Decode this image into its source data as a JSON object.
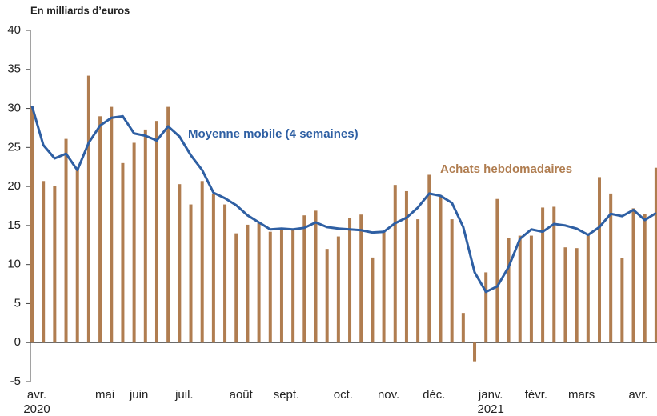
{
  "chart_data": {
    "type": "bar+line",
    "y_axis_label": "En milliards d’euros",
    "categories": [
      "avr. 2020",
      null,
      null,
      null,
      null,
      null,
      "mai",
      null,
      null,
      "juin",
      null,
      null,
      null,
      "juil.",
      null,
      null,
      null,
      null,
      "août",
      null,
      null,
      null,
      "sept.",
      null,
      null,
      null,
      null,
      "oct.",
      null,
      null,
      null,
      "nov.",
      null,
      null,
      null,
      "déc.",
      null,
      null,
      null,
      null,
      "janv. 2021",
      null,
      null,
      null,
      "févr.",
      null,
      null,
      null,
      "mars",
      null,
      null,
      null,
      null,
      "avr.",
      null,
      null
    ],
    "series": [
      {
        "name": "Achats hebdomadaires",
        "type": "bar",
        "color": "#b07d50",
        "values": [
          30.3,
          20.7,
          20.1,
          26.1,
          22.3,
          34.2,
          29,
          30.2,
          23,
          25.6,
          27.3,
          28.4,
          30.2,
          20.3,
          17.7,
          20.7,
          19,
          17.7,
          14,
          15.1,
          15.3,
          14.2,
          14.4,
          14.4,
          16.3,
          16.9,
          12,
          13.6,
          16,
          16.4,
          10.9,
          14.2,
          20.2,
          19.4,
          15.8,
          21.5,
          18.7,
          15.8,
          3.8,
          -2.4,
          9,
          18.4,
          13.4,
          13.7,
          13.7,
          17.3,
          17.4,
          12.2,
          12.1,
          14,
          21.2,
          19.1,
          10.8,
          17.2,
          16.5,
          22.4
        ]
      },
      {
        "name": "Moyenne mobile (4 semaines)",
        "type": "line",
        "color": "#2e5fa3",
        "values": [
          30.3,
          25.3,
          23.6,
          24.2,
          22.1,
          25.6,
          27.8,
          28.8,
          29,
          26.8,
          26.5,
          25.9,
          27.7,
          26.4,
          24,
          22.1,
          19.2,
          18.5,
          17.6,
          16.3,
          15.4,
          14.5,
          14.6,
          14.5,
          14.7,
          15.4,
          14.8,
          14.6,
          14.5,
          14.4,
          14.1,
          14.2,
          15.3,
          16,
          17.3,
          19.1,
          18.8,
          17.9,
          14.8,
          9,
          6.5,
          7.2,
          9.7,
          13.3,
          14.5,
          14.2,
          15.2,
          15,
          14.6,
          13.8,
          14.8,
          16.5,
          16.2,
          17,
          15.7,
          16.6
        ]
      }
    ],
    "ylim": [
      -5,
      40
    ],
    "yticks": [
      -5,
      0,
      5,
      10,
      15,
      20,
      25,
      30,
      35,
      40
    ]
  }
}
